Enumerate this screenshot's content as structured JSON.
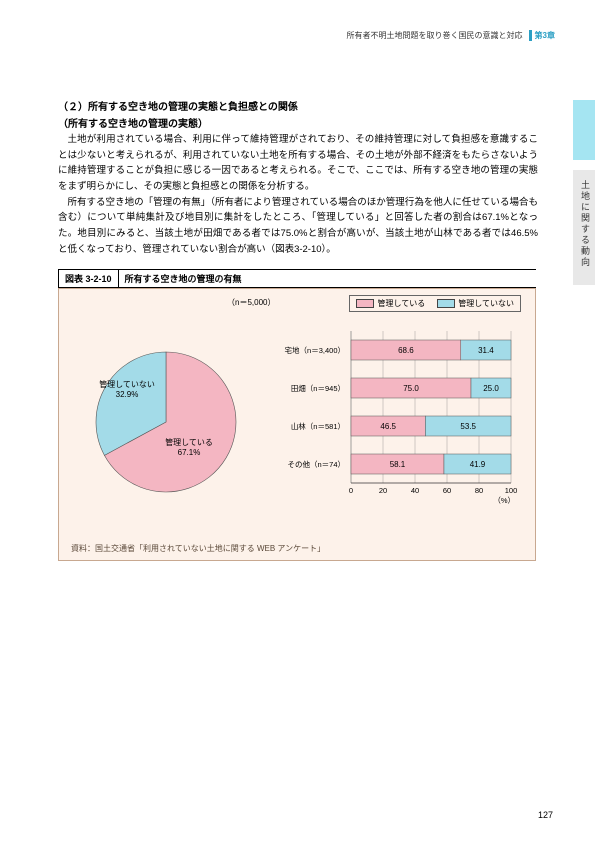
{
  "header": {
    "title": "所有者不明土地問題を取り巻く国民の意識と対応",
    "chapter": "第3章"
  },
  "sideTab": {
    "text": "土地に関する動向"
  },
  "content": {
    "heading1": "（２）所有する空き地の管理の実態と負担感との関係",
    "heading2": "（所有する空き地の管理の実態）",
    "para1": "土地が利用されている場合、利用に伴って維持管理がされており、その維持管理に対して負担感を意識することは少ないと考えられるが、利用されていない土地を所有する場合、その土地が外部不経済をもたらさないように維持管理することが負担に感じる一因であると考えられる。そこで、ここでは、所有する空き地の管理の実態をまず明らかにし、その実態と負担感との関係を分析する。",
    "para2": "所有する空き地の「管理の有無」（所有者により管理されている場合のほか管理行為を他人に任せている場合も含む）について単純集計及び地目別に集計をしたところ、「管理している」と回答した者の割合は67.1%となった。地目別にみると、当該土地が田畑である者では75.0%と割合が高いが、当該土地が山林である者では46.5%と低くなっており、管理されていない割合が高い（図表3-2-10）。"
  },
  "figure": {
    "label": "図表 3-2-10",
    "title": "所有する空き地の管理の有無",
    "nTotal": "（n＝5,000）",
    "legend": {
      "managed": "管理している",
      "notManaged": "管理していない"
    },
    "colors": {
      "managed": "#f4b6c2",
      "notManaged": "#a3dbe8",
      "barBorder": "#555555",
      "grid": "#888888"
    },
    "pie": {
      "managed": {
        "label": "管理している",
        "percent": "67.1%",
        "value": 67.1
      },
      "notManaged": {
        "label": "管理していない",
        "percent": "32.9%",
        "value": 32.9
      }
    },
    "bars": {
      "categories": [
        {
          "label": "宅地",
          "n": "（n＝3,400）",
          "managed": 68.6,
          "notManaged": 31.4
        },
        {
          "label": "田畑",
          "n": "（n＝945）",
          "managed": 75.0,
          "notManaged": 25.0
        },
        {
          "label": "山林",
          "n": "（n＝581）",
          "managed": 46.5,
          "notManaged": 53.5
        },
        {
          "label": "その他",
          "n": "（n＝74）",
          "managed": 58.1,
          "notManaged": 41.9
        }
      ],
      "xTicks": [
        0,
        20,
        40,
        60,
        80,
        100
      ],
      "xUnit": "（%）"
    },
    "source": "資料：国土交通省「利用されていない土地に関する WEB アンケート」"
  },
  "pageNum": "127"
}
